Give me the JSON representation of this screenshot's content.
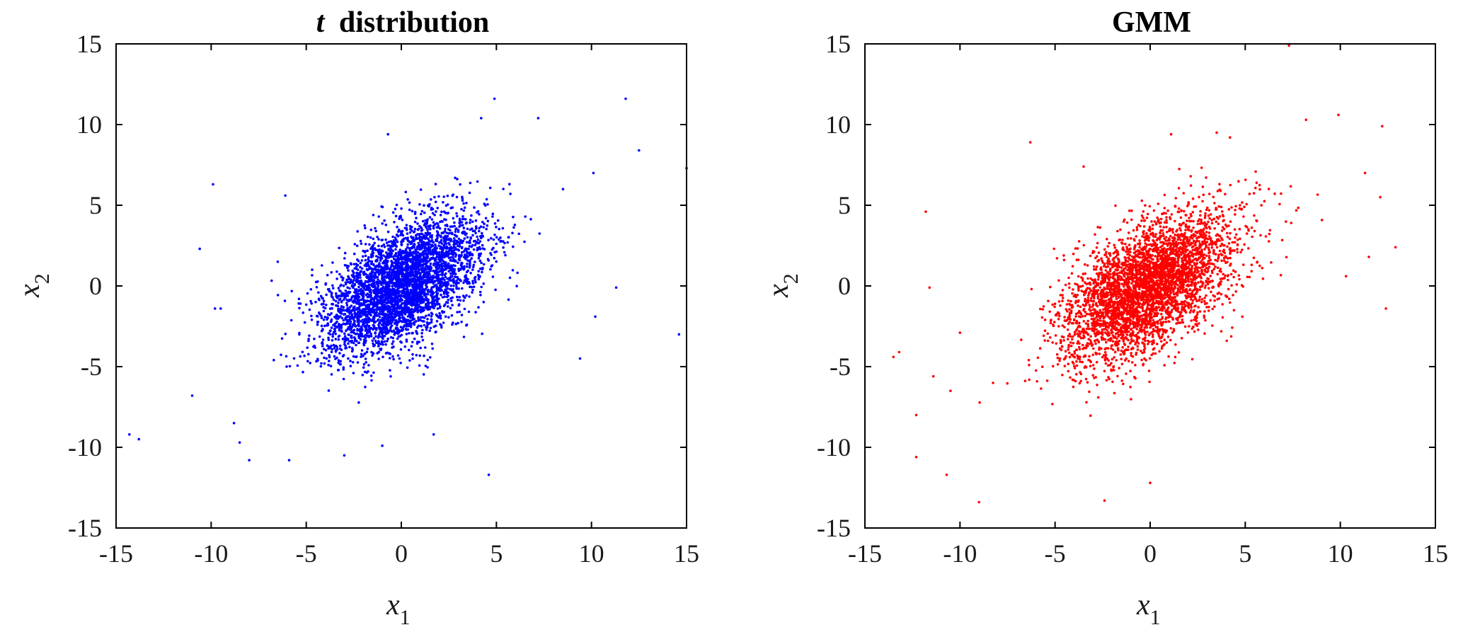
{
  "chart_data": [
    {
      "type": "scatter",
      "title_prefix": "t",
      "title": "distribution",
      "xlabel": "x",
      "xlabel_sub": "1",
      "ylabel": "x",
      "ylabel_sub": "2",
      "xlim": [
        -15,
        15
      ],
      "ylim": [
        -15,
        15
      ],
      "xticks": [
        -15,
        -10,
        -5,
        0,
        5,
        10,
        15
      ],
      "yticks": [
        -15,
        -10,
        -5,
        0,
        5,
        10,
        15
      ],
      "xtick_labels": [
        "-15",
        "-10",
        "-5",
        "0",
        "5",
        "10",
        "15"
      ],
      "ytick_labels": [
        "-15",
        "-10",
        "-5",
        "0",
        "5",
        "10",
        "15"
      ],
      "color": "#0000ff",
      "grid": false,
      "distribution": {
        "mean": [
          0.0,
          0.0
        ],
        "std": [
          2.1,
          2.1
        ],
        "correlation": 0.55,
        "n_points": 4000
      },
      "outliers": [
        [
          -14.3,
          -9.2
        ],
        [
          -13.8,
          -9.5
        ],
        [
          -11.0,
          -6.8
        ],
        [
          -10.6,
          2.3
        ],
        [
          -9.9,
          6.3
        ],
        [
          -9.8,
          -1.4
        ],
        [
          -9.5,
          -1.4
        ],
        [
          -8.8,
          -8.5
        ],
        [
          -8.5,
          -9.7
        ],
        [
          -8.0,
          -10.8
        ],
        [
          -6.1,
          5.6
        ],
        [
          -5.9,
          -10.8
        ],
        [
          -3.0,
          -10.5
        ],
        [
          -1.0,
          -9.9
        ],
        [
          -0.7,
          9.4
        ],
        [
          1.7,
          -9.2
        ],
        [
          4.2,
          10.4
        ],
        [
          4.6,
          -11.7
        ],
        [
          4.9,
          11.6
        ],
        [
          7.2,
          10.4
        ],
        [
          9.4,
          -4.5
        ],
        [
          10.1,
          7.0
        ],
        [
          10.2,
          -1.9
        ],
        [
          11.3,
          -0.1
        ],
        [
          11.8,
          11.6
        ],
        [
          12.5,
          8.4
        ],
        [
          14.6,
          -3.0
        ],
        [
          15.0,
          7.3
        ],
        [
          8.5,
          6.0
        ],
        [
          -6.5,
          1.5
        ]
      ]
    },
    {
      "type": "scatter",
      "title_prefix": "",
      "title": "GMM",
      "xlabel": "x",
      "xlabel_sub": "1",
      "ylabel": "x",
      "ylabel_sub": "2",
      "xlim": [
        -15,
        15
      ],
      "ylim": [
        -15,
        15
      ],
      "xticks": [
        -15,
        -10,
        -5,
        0,
        5,
        10,
        15
      ],
      "yticks": [
        -15,
        -10,
        -5,
        0,
        5,
        10,
        15
      ],
      "xtick_labels": [
        "-15",
        "-10",
        "-5",
        "0",
        "5",
        "10",
        "15"
      ],
      "ytick_labels": [
        "-15",
        "-10",
        "-5",
        "0",
        "5",
        "10",
        "15"
      ],
      "color": "#ff0000",
      "grid": false,
      "distribution": {
        "mean": [
          0.0,
          0.0
        ],
        "std": [
          2.2,
          2.2
        ],
        "correlation": 0.55,
        "n_points": 4000
      },
      "outliers": [
        [
          -13.5,
          -4.4
        ],
        [
          -13.2,
          -4.1
        ],
        [
          -12.3,
          -10.6
        ],
        [
          -12.3,
          -8.0
        ],
        [
          -11.8,
          4.6
        ],
        [
          -11.6,
          -0.1
        ],
        [
          -11.4,
          -5.6
        ],
        [
          -10.7,
          -11.7
        ],
        [
          -10.5,
          -6.5
        ],
        [
          -10.0,
          -2.9
        ],
        [
          -9.0,
          -13.4
        ],
        [
          -6.3,
          8.9
        ],
        [
          -3.5,
          7.4
        ],
        [
          -2.4,
          -13.3
        ],
        [
          0.0,
          -12.2
        ],
        [
          1.1,
          9.4
        ],
        [
          3.5,
          9.5
        ],
        [
          4.2,
          9.2
        ],
        [
          7.3,
          14.9
        ],
        [
          8.2,
          10.3
        ],
        [
          9.9,
          10.6
        ],
        [
          10.3,
          0.6
        ],
        [
          11.3,
          7.0
        ],
        [
          12.1,
          5.5
        ],
        [
          12.2,
          9.9
        ],
        [
          12.4,
          -1.4
        ],
        [
          12.9,
          2.4
        ],
        [
          11.5,
          1.8
        ]
      ]
    }
  ]
}
